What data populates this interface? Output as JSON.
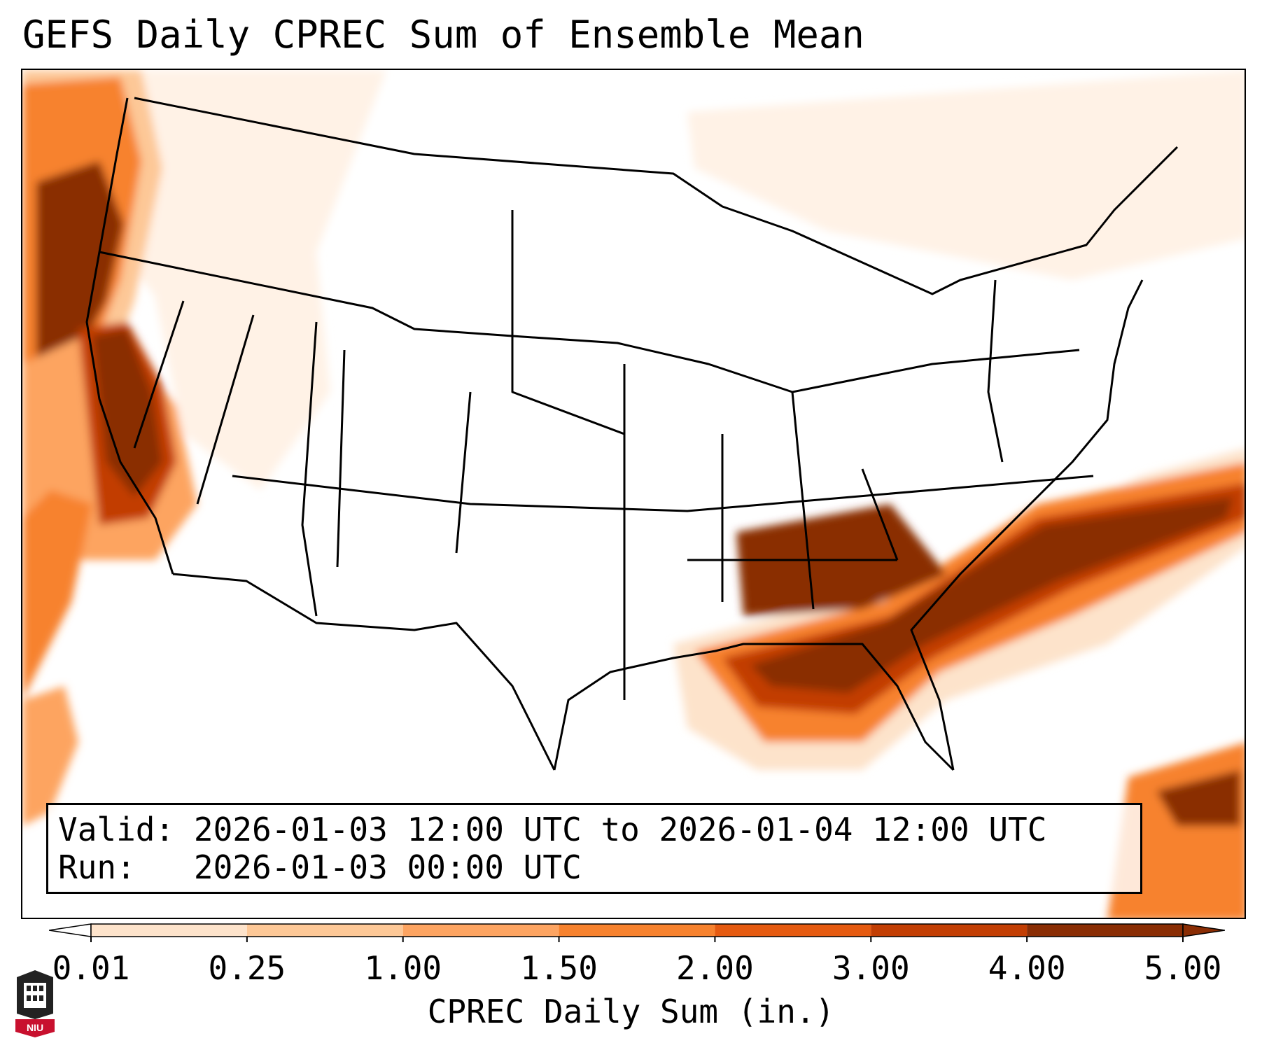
{
  "title": "GEFS Daily CPREC Sum of Ensemble Mean",
  "info": {
    "valid_label": "Valid:",
    "valid_value": "2026-01-03 12:00 UTC to 2026-01-04 12:00 UTC",
    "run_label": "Run:",
    "run_value": "2026-01-03 00:00 UTC"
  },
  "colorbar": {
    "label": "CPREC Daily Sum (in.)",
    "ticks": [
      "0.01",
      "0.25",
      "1.00",
      "1.50",
      "2.00",
      "3.00",
      "4.00",
      "5.00"
    ],
    "colors": [
      "#fff2e6",
      "#fde3cb",
      "#fdc897",
      "#fda461",
      "#f7822e",
      "#e55a10",
      "#c23e03",
      "#8a2d04"
    ],
    "extend": "both"
  },
  "logo": {
    "text": "NIU",
    "color": "#c8102e"
  },
  "map_data": {
    "variable": "Convective precipitation daily sum of ensemble mean (in.)",
    "region": "Contiguous United States",
    "precip_areas": [
      {
        "name": "Pacific Northwest coast",
        "level_in": 5.0
      },
      {
        "name": "Northern California coast",
        "level_in": 5.0
      },
      {
        "name": "Gulf of Mexico south of Alabama/Florida Panhandle",
        "level_in": 5.0
      },
      {
        "name": "Georgia and South Carolina into Atlantic",
        "level_in": 5.0
      },
      {
        "name": "Western Atlantic east of Carolinas",
        "level_in": 5.0
      },
      {
        "name": "Caribbean south of Hispaniola",
        "level_in": 4.0
      }
    ]
  }
}
